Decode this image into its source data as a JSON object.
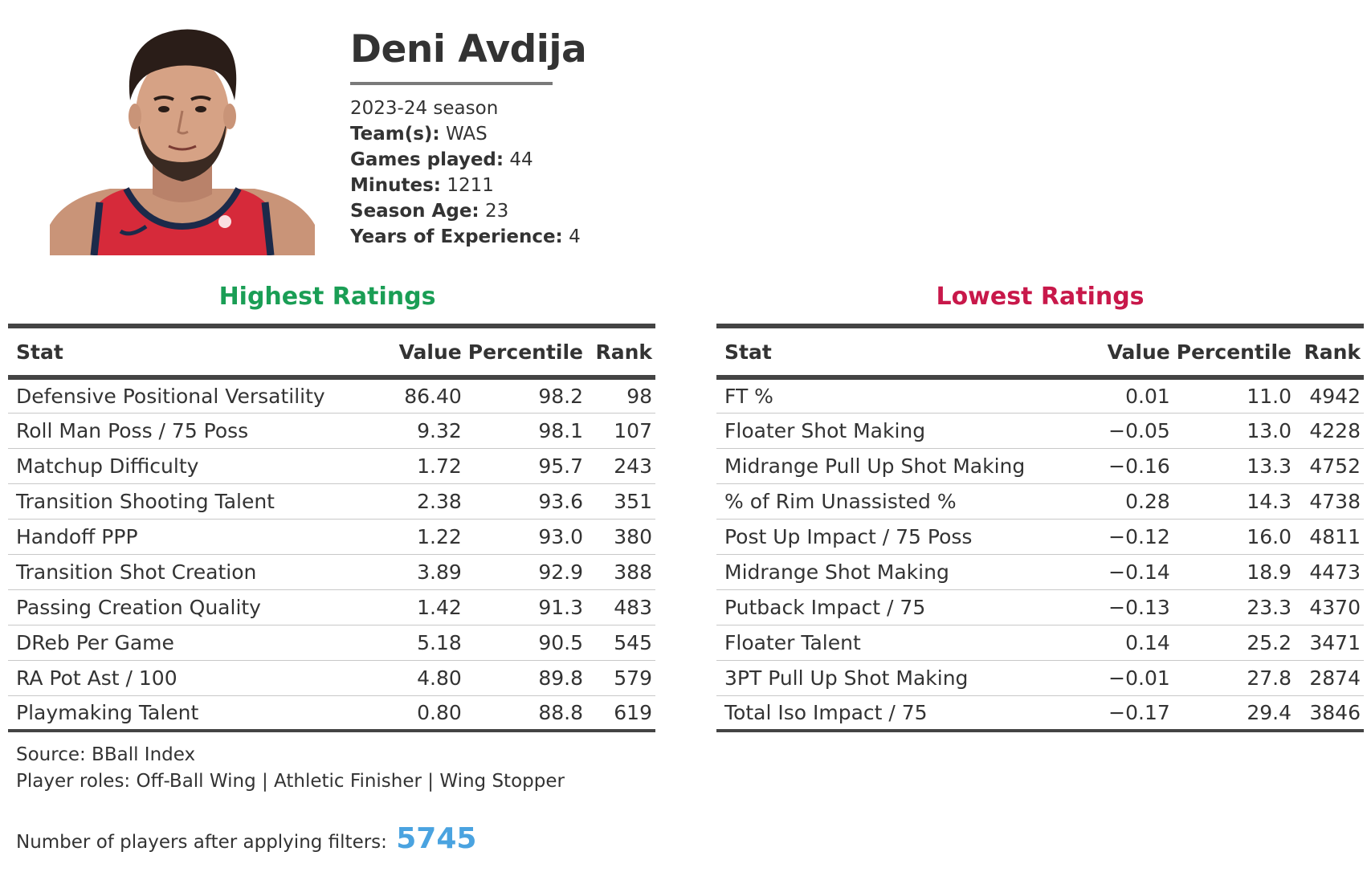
{
  "player": {
    "name": "Deni Avdija",
    "season": "2023-24 season",
    "bio": [
      {
        "label": "Team(s):",
        "value": "WAS"
      },
      {
        "label": "Games played:",
        "value": "44"
      },
      {
        "label": "Minutes:",
        "value": "1211"
      },
      {
        "label": "Season Age:",
        "value": "23"
      },
      {
        "label": "Years of Experience:",
        "value": "4"
      }
    ]
  },
  "highest": {
    "title": "Highest Ratings",
    "title_color": "#1a9e55",
    "headers": {
      "stat": "Stat",
      "value": "Value",
      "percentile": "Percentile",
      "rank": "Rank"
    },
    "rows": [
      {
        "stat": "Defensive Positional Versatility",
        "value": "86.40",
        "percentile": "98.2",
        "rank": "98"
      },
      {
        "stat": "Roll Man Poss / 75 Poss",
        "value": "9.32",
        "percentile": "98.1",
        "rank": "107"
      },
      {
        "stat": "Matchup Difficulty",
        "value": "1.72",
        "percentile": "95.7",
        "rank": "243"
      },
      {
        "stat": "Transition Shooting Talent",
        "value": "2.38",
        "percentile": "93.6",
        "rank": "351"
      },
      {
        "stat": "Handoff PPP",
        "value": "1.22",
        "percentile": "93.0",
        "rank": "380"
      },
      {
        "stat": "Transition Shot Creation",
        "value": "3.89",
        "percentile": "92.9",
        "rank": "388"
      },
      {
        "stat": "Passing Creation Quality",
        "value": "1.42",
        "percentile": "91.3",
        "rank": "483"
      },
      {
        "stat": "DReb Per Game",
        "value": "5.18",
        "percentile": "90.5",
        "rank": "545"
      },
      {
        "stat": "RA Pot Ast / 100",
        "value": "4.80",
        "percentile": "89.8",
        "rank": "579"
      },
      {
        "stat": "Playmaking Talent",
        "value": "0.80",
        "percentile": "88.8",
        "rank": "619"
      }
    ]
  },
  "lowest": {
    "title": "Lowest Ratings",
    "title_color": "#c8184a",
    "headers": {
      "stat": "Stat",
      "value": "Value",
      "percentile": "Percentile",
      "rank": "Rank"
    },
    "rows": [
      {
        "stat": "FT %",
        "value": "0.01",
        "percentile": "11.0",
        "rank": "4942"
      },
      {
        "stat": "Floater Shot Making",
        "value": "−0.05",
        "percentile": "13.0",
        "rank": "4228"
      },
      {
        "stat": "Midrange Pull Up Shot Making",
        "value": "−0.16",
        "percentile": "13.3",
        "rank": "4752"
      },
      {
        "stat": "% of Rim Unassisted %",
        "value": "0.28",
        "percentile": "14.3",
        "rank": "4738"
      },
      {
        "stat": "Post Up Impact / 75 Poss",
        "value": "−0.12",
        "percentile": "16.0",
        "rank": "4811"
      },
      {
        "stat": "Midrange Shot Making",
        "value": "−0.14",
        "percentile": "18.9",
        "rank": "4473"
      },
      {
        "stat": "Putback Impact / 75",
        "value": "−0.13",
        "percentile": "23.3",
        "rank": "4370"
      },
      {
        "stat": "Floater Talent",
        "value": "0.14",
        "percentile": "25.2",
        "rank": "3471"
      },
      {
        "stat": "3PT Pull Up Shot Making",
        "value": "−0.01",
        "percentile": "27.8",
        "rank": "2874"
      },
      {
        "stat": "Total Iso Impact / 75",
        "value": "−0.17",
        "percentile": "29.4",
        "rank": "3846"
      }
    ]
  },
  "footer": {
    "source": "Source: BBall Index",
    "roles": "Player roles: Off-Ball Wing | Athletic Finisher | Wing Stopper",
    "count_label": "Number of players after applying filters:",
    "count_value": "5745",
    "count_color": "#4aa3e0"
  },
  "photo": {
    "icon": "player-headshot",
    "jersey_color": "#d62a3a",
    "jersey_trim": "#1c2a4a"
  }
}
